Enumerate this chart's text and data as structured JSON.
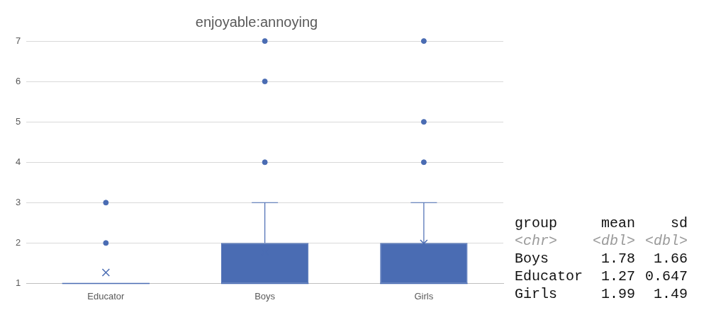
{
  "chart_data": [
    {
      "type": "box",
      "title": "enjoyable:annoying",
      "categories": [
        "Educator",
        "Boys",
        "Girls"
      ],
      "color": "#4a6cb3",
      "ylim": [
        1,
        7
      ],
      "yticks": [
        1,
        2,
        3,
        4,
        5,
        6,
        7
      ],
      "grid": "y",
      "legend": false,
      "boxes": [
        {
          "low": 1,
          "q1": 1,
          "median": 1,
          "q3": 1,
          "high": 1,
          "mean": 1.27,
          "outliers": [
            2,
            3
          ]
        },
        {
          "low": 1,
          "q1": 1,
          "median": 1,
          "q3": 2,
          "high": 3,
          "mean": 1.78,
          "outliers": [
            4,
            6,
            7
          ]
        },
        {
          "low": 1,
          "q1": 1,
          "median": 1,
          "q3": 2,
          "high": 3,
          "mean": 1.99,
          "outliers": [
            4,
            5,
            7
          ]
        }
      ]
    },
    {
      "type": "other",
      "data_labels": true,
      "categories": [
        "Boys",
        "Educator",
        "Girls"
      ],
      "annotations": [
        "group",
        "<chr>",
        "<dbl>",
        "<dbl>"
      ],
      "series": [
        {
          "name": "mean",
          "values": [
            1.78,
            1.27,
            1.99
          ]
        },
        {
          "name": "sd",
          "values": [
            1.66,
            0.647,
            1.49
          ]
        }
      ]
    }
  ]
}
